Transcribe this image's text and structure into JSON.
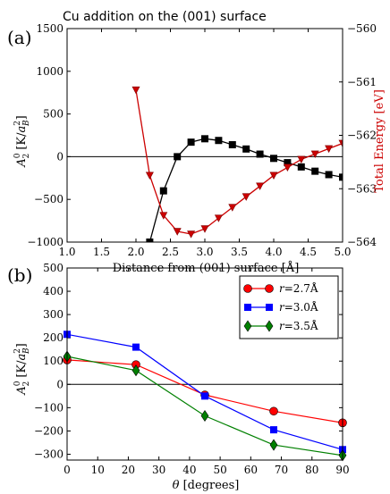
{
  "chart_data": [
    {
      "panel_label": "(a)",
      "type": "line",
      "title": "Cu addition on the (001) surface",
      "xlabel": "Distance from (001) surface [Å]",
      "ylabel_left": "A",
      "ylabel_left_sub": "2",
      "ylabel_left_sup": "0",
      "ylabel_left_unit_pre": " [K/",
      "ylabel_left_unit_var": "a",
      "ylabel_left_unit_sub": "B",
      "ylabel_left_unit_sup": "2",
      "ylabel_left_unit_post": "]",
      "ylabel_right": "Total Energy [eV]",
      "xlim": [
        1.0,
        5.0
      ],
      "ylim_left": [
        -1000,
        1500
      ],
      "ylim_right": [
        -564,
        -560
      ],
      "xticks": [
        "1.0",
        "1.5",
        "2.0",
        "2.5",
        "3.0",
        "3.5",
        "4.0",
        "4.5",
        "5.0"
      ],
      "yticks_left": [
        "−1000",
        "−500",
        "0",
        "500",
        "1000",
        "1500"
      ],
      "yticks_right": [
        "−564",
        "−563",
        "−562",
        "−561",
        "−560"
      ],
      "series": [
        {
          "axis": "left",
          "color": "#000000",
          "marker": "square",
          "x": [
            2.2,
            2.4,
            2.6,
            2.8,
            3.0,
            3.2,
            3.4,
            3.6,
            3.8,
            4.0,
            4.2,
            4.4,
            4.6,
            4.8,
            5.0
          ],
          "y": [
            -1000,
            -400,
            0,
            170,
            210,
            190,
            140,
            90,
            30,
            -20,
            -70,
            -120,
            -170,
            -210,
            -240
          ]
        },
        {
          "axis": "right",
          "color": "#cc0000",
          "marker": "triangle-down",
          "x": [
            2.0,
            2.2,
            2.4,
            2.6,
            2.8,
            3.0,
            3.2,
            3.4,
            3.6,
            3.8,
            4.0,
            4.2,
            4.4,
            4.6,
            4.8,
            5.0
          ],
          "y": [
            -561.15,
            -562.75,
            -563.5,
            -563.8,
            -563.85,
            -563.75,
            -563.55,
            -563.35,
            -563.15,
            -562.95,
            -562.75,
            -562.6,
            -562.45,
            -562.35,
            -562.25,
            -562.15
          ]
        }
      ]
    },
    {
      "panel_label": "(b)",
      "type": "line",
      "xlabel_var": "θ",
      "xlabel_unit": " [degrees]",
      "ylabel": "A",
      "ylabel_sub": "2",
      "ylabel_sup": "0",
      "ylabel_unit_pre": " [K/",
      "ylabel_unit_var": "a",
      "ylabel_unit_sub": "B",
      "ylabel_unit_sup": "2",
      "ylabel_unit_post": "]",
      "xlim": [
        0,
        90
      ],
      "ylim": [
        -325,
        500
      ],
      "xticks": [
        "0",
        "10",
        "20",
        "30",
        "40",
        "50",
        "60",
        "70",
        "80",
        "90"
      ],
      "yticks": [
        "−300",
        "−200",
        "−100",
        "0",
        "100",
        "200",
        "300",
        "400",
        "500"
      ],
      "legend_position": "top-right",
      "series": [
        {
          "name_var": "r",
          "name_value": "=2.7Å",
          "color": "#ff0000",
          "marker": "circle",
          "x": [
            0,
            22.5,
            45,
            67.5,
            90
          ],
          "y": [
            105,
            85,
            -45,
            -115,
            -165
          ]
        },
        {
          "name_var": "r",
          "name_value": "=3.0Å",
          "color": "#0000ff",
          "marker": "square",
          "x": [
            0,
            22.5,
            45,
            67.5,
            90
          ],
          "y": [
            215,
            160,
            -50,
            -195,
            -280
          ]
        },
        {
          "name_var": "r",
          "name_value": "=3.5Å",
          "color": "#008000",
          "marker": "diamond",
          "x": [
            0,
            22.5,
            45,
            67.5,
            90
          ],
          "y": [
            120,
            60,
            -135,
            -260,
            -305
          ]
        }
      ]
    }
  ]
}
